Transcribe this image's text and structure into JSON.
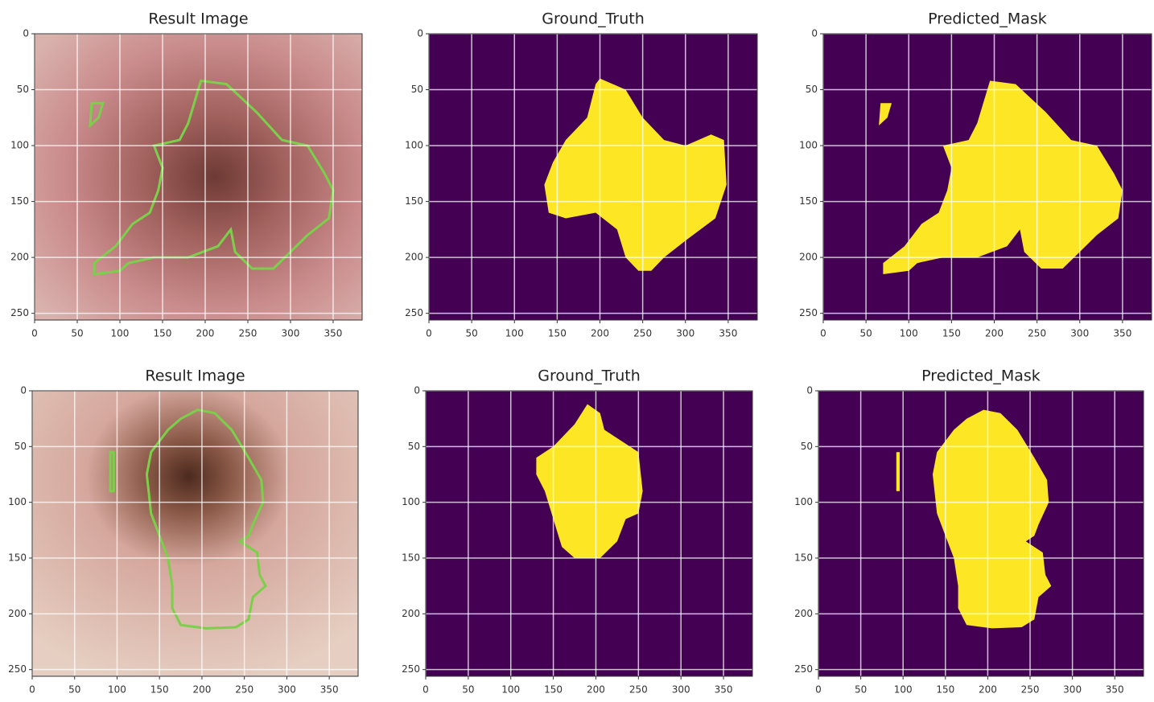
{
  "chart_data": [
    {
      "type": "image",
      "title": "Result Image",
      "xlim": [
        0,
        384
      ],
      "ylim": [
        256,
        0
      ],
      "xticks": [
        0,
        50,
        100,
        150,
        200,
        250,
        300,
        350
      ],
      "yticks": [
        0,
        50,
        100,
        150,
        200,
        250
      ],
      "grid": true
    },
    {
      "type": "image",
      "title": "Ground_Truth",
      "xlim": [
        0,
        384
      ],
      "ylim": [
        256,
        0
      ],
      "xticks": [
        0,
        50,
        100,
        150,
        200,
        250,
        300,
        350
      ],
      "yticks": [
        0,
        50,
        100,
        150,
        200,
        250
      ],
      "grid": true
    },
    {
      "type": "image",
      "title": "Predicted_Mask",
      "xlim": [
        0,
        384
      ],
      "ylim": [
        256,
        0
      ],
      "xticks": [
        0,
        50,
        100,
        150,
        200,
        250,
        300,
        350
      ],
      "yticks": [
        0,
        50,
        100,
        150,
        200,
        250
      ],
      "grid": true
    },
    {
      "type": "image",
      "title": "Result Image",
      "xlim": [
        0,
        384
      ],
      "ylim": [
        256,
        0
      ],
      "xticks": [
        0,
        50,
        100,
        150,
        200,
        250,
        300,
        350
      ],
      "yticks": [
        0,
        50,
        100,
        150,
        200,
        250
      ],
      "grid": true
    },
    {
      "type": "image",
      "title": "Ground_Truth",
      "xlim": [
        0,
        384
      ],
      "ylim": [
        256,
        0
      ],
      "xticks": [
        0,
        50,
        100,
        150,
        200,
        250,
        300,
        350
      ],
      "yticks": [
        0,
        50,
        100,
        150,
        200,
        250
      ],
      "grid": true
    },
    {
      "type": "image",
      "title": "Predicted_Mask",
      "xlim": [
        0,
        384
      ],
      "ylim": [
        256,
        0
      ],
      "xticks": [
        0,
        50,
        100,
        150,
        200,
        250,
        300,
        350
      ],
      "yticks": [
        0,
        50,
        100,
        150,
        200,
        250
      ],
      "grid": true
    }
  ]
}
